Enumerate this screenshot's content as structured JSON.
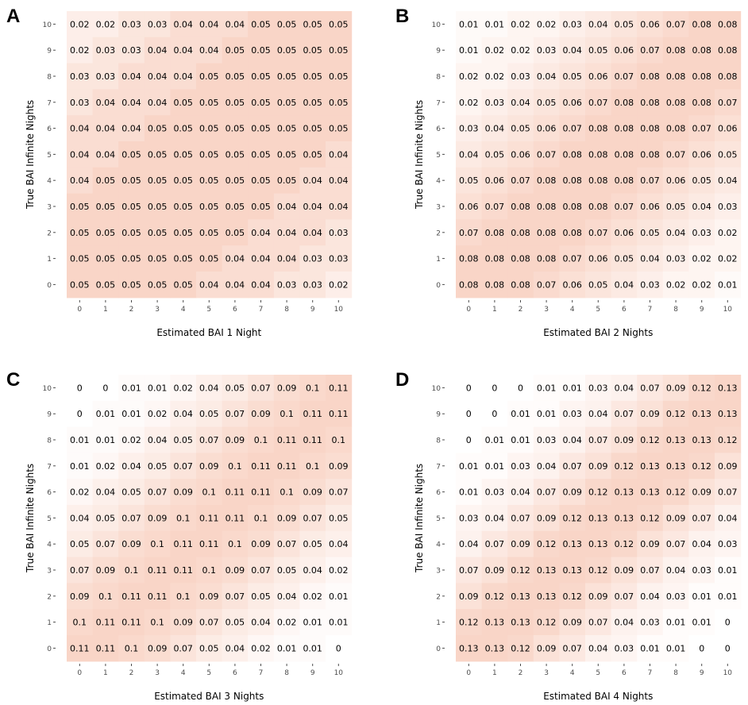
{
  "chart_data": [
    {
      "type": "heatmap",
      "panel_label": "A",
      "xlabel": "Estimated BAI 1 Night",
      "ylabel": "True BAI Infinite Nights",
      "x": [
        0,
        1,
        2,
        3,
        4,
        5,
        6,
        7,
        8,
        9,
        10
      ],
      "y": [
        0,
        1,
        2,
        3,
        4,
        5,
        6,
        7,
        8,
        9,
        10
      ],
      "x_tick_labels": [
        "0",
        "1",
        "2",
        "3",
        "4",
        "5",
        "6",
        "7",
        "8",
        "9",
        "10"
      ],
      "y_tick_labels": [
        "0",
        "1",
        "2",
        "3",
        "4",
        "5",
        "6",
        "7",
        "8",
        "9",
        "10"
      ],
      "z_rows_top_to_bottom": [
        [
          "0.02",
          "0.02",
          "0.03",
          "0.03",
          "0.04",
          "0.04",
          "0.04",
          "0.05",
          "0.05",
          "0.05",
          "0.05"
        ],
        [
          "0.02",
          "0.03",
          "0.03",
          "0.04",
          "0.04",
          "0.04",
          "0.05",
          "0.05",
          "0.05",
          "0.05",
          "0.05"
        ],
        [
          "0.03",
          "0.03",
          "0.04",
          "0.04",
          "0.04",
          "0.05",
          "0.05",
          "0.05",
          "0.05",
          "0.05",
          "0.05"
        ],
        [
          "0.03",
          "0.04",
          "0.04",
          "0.04",
          "0.05",
          "0.05",
          "0.05",
          "0.05",
          "0.05",
          "0.05",
          "0.05"
        ],
        [
          "0.04",
          "0.04",
          "0.04",
          "0.05",
          "0.05",
          "0.05",
          "0.05",
          "0.05",
          "0.05",
          "0.05",
          "0.05"
        ],
        [
          "0.04",
          "0.04",
          "0.05",
          "0.05",
          "0.05",
          "0.05",
          "0.05",
          "0.05",
          "0.05",
          "0.05",
          "0.04"
        ],
        [
          "0.04",
          "0.05",
          "0.05",
          "0.05",
          "0.05",
          "0.05",
          "0.05",
          "0.05",
          "0.05",
          "0.04",
          "0.04"
        ],
        [
          "0.05",
          "0.05",
          "0.05",
          "0.05",
          "0.05",
          "0.05",
          "0.05",
          "0.05",
          "0.04",
          "0.04",
          "0.04"
        ],
        [
          "0.05",
          "0.05",
          "0.05",
          "0.05",
          "0.05",
          "0.05",
          "0.05",
          "0.04",
          "0.04",
          "0.04",
          "0.03"
        ],
        [
          "0.05",
          "0.05",
          "0.05",
          "0.05",
          "0.05",
          "0.05",
          "0.04",
          "0.04",
          "0.04",
          "0.03",
          "0.03"
        ],
        [
          "0.05",
          "0.05",
          "0.05",
          "0.05",
          "0.05",
          "0.04",
          "0.04",
          "0.04",
          "0.03",
          "0.03",
          "0.02"
        ]
      ]
    },
    {
      "type": "heatmap",
      "panel_label": "B",
      "xlabel": "Estimated BAI 2 Nights",
      "ylabel": "True BAI Infinite Nights",
      "x": [
        0,
        1,
        2,
        3,
        4,
        5,
        6,
        7,
        8,
        9,
        10
      ],
      "y": [
        0,
        1,
        2,
        3,
        4,
        5,
        6,
        7,
        8,
        9,
        10
      ],
      "x_tick_labels": [
        "0",
        "1",
        "2",
        "3",
        "4",
        "5",
        "6",
        "7",
        "8",
        "9",
        "10"
      ],
      "y_tick_labels": [
        "0",
        "1",
        "2",
        "3",
        "4",
        "5",
        "6",
        "7",
        "8",
        "9",
        "10"
      ],
      "z_rows_top_to_bottom": [
        [
          "0.01",
          "0.01",
          "0.02",
          "0.02",
          "0.03",
          "0.04",
          "0.05",
          "0.06",
          "0.07",
          "0.08",
          "0.08"
        ],
        [
          "0.01",
          "0.02",
          "0.02",
          "0.03",
          "0.04",
          "0.05",
          "0.06",
          "0.07",
          "0.08",
          "0.08",
          "0.08"
        ],
        [
          "0.02",
          "0.02",
          "0.03",
          "0.04",
          "0.05",
          "0.06",
          "0.07",
          "0.08",
          "0.08",
          "0.08",
          "0.08"
        ],
        [
          "0.02",
          "0.03",
          "0.04",
          "0.05",
          "0.06",
          "0.07",
          "0.08",
          "0.08",
          "0.08",
          "0.08",
          "0.07"
        ],
        [
          "0.03",
          "0.04",
          "0.05",
          "0.06",
          "0.07",
          "0.08",
          "0.08",
          "0.08",
          "0.08",
          "0.07",
          "0.06"
        ],
        [
          "0.04",
          "0.05",
          "0.06",
          "0.07",
          "0.08",
          "0.08",
          "0.08",
          "0.08",
          "0.07",
          "0.06",
          "0.05"
        ],
        [
          "0.05",
          "0.06",
          "0.07",
          "0.08",
          "0.08",
          "0.08",
          "0.08",
          "0.07",
          "0.06",
          "0.05",
          "0.04"
        ],
        [
          "0.06",
          "0.07",
          "0.08",
          "0.08",
          "0.08",
          "0.08",
          "0.07",
          "0.06",
          "0.05",
          "0.04",
          "0.03"
        ],
        [
          "0.07",
          "0.08",
          "0.08",
          "0.08",
          "0.08",
          "0.07",
          "0.06",
          "0.05",
          "0.04",
          "0.03",
          "0.02"
        ],
        [
          "0.08",
          "0.08",
          "0.08",
          "0.08",
          "0.07",
          "0.06",
          "0.05",
          "0.04",
          "0.03",
          "0.02",
          "0.02"
        ],
        [
          "0.08",
          "0.08",
          "0.08",
          "0.07",
          "0.06",
          "0.05",
          "0.04",
          "0.03",
          "0.02",
          "0.02",
          "0.01"
        ]
      ]
    },
    {
      "type": "heatmap",
      "panel_label": "C",
      "xlabel": "Estimated BAI 3 Nights",
      "ylabel": "True BAI Infinite Nights",
      "x": [
        0,
        1,
        2,
        3,
        4,
        5,
        6,
        7,
        8,
        9,
        10
      ],
      "y": [
        0,
        1,
        2,
        3,
        4,
        5,
        6,
        7,
        8,
        9,
        10
      ],
      "x_tick_labels": [
        "0",
        "1",
        "2",
        "3",
        "4",
        "5",
        "6",
        "7",
        "8",
        "9",
        "10"
      ],
      "y_tick_labels": [
        "0",
        "1",
        "2",
        "3",
        "4",
        "5",
        "6",
        "7",
        "8",
        "9",
        "10"
      ],
      "z_rows_top_to_bottom": [
        [
          "0",
          "0",
          "0.01",
          "0.01",
          "0.02",
          "0.04",
          "0.05",
          "0.07",
          "0.09",
          "0.1",
          "0.11"
        ],
        [
          "0",
          "0.01",
          "0.01",
          "0.02",
          "0.04",
          "0.05",
          "0.07",
          "0.09",
          "0.1",
          "0.11",
          "0.11"
        ],
        [
          "0.01",
          "0.01",
          "0.02",
          "0.04",
          "0.05",
          "0.07",
          "0.09",
          "0.1",
          "0.11",
          "0.11",
          "0.1"
        ],
        [
          "0.01",
          "0.02",
          "0.04",
          "0.05",
          "0.07",
          "0.09",
          "0.1",
          "0.11",
          "0.11",
          "0.1",
          "0.09"
        ],
        [
          "0.02",
          "0.04",
          "0.05",
          "0.07",
          "0.09",
          "0.1",
          "0.11",
          "0.11",
          "0.1",
          "0.09",
          "0.07"
        ],
        [
          "0.04",
          "0.05",
          "0.07",
          "0.09",
          "0.1",
          "0.11",
          "0.11",
          "0.1",
          "0.09",
          "0.07",
          "0.05"
        ],
        [
          "0.05",
          "0.07",
          "0.09",
          "0.1",
          "0.11",
          "0.11",
          "0.1",
          "0.09",
          "0.07",
          "0.05",
          "0.04"
        ],
        [
          "0.07",
          "0.09",
          "0.1",
          "0.11",
          "0.11",
          "0.1",
          "0.09",
          "0.07",
          "0.05",
          "0.04",
          "0.02"
        ],
        [
          "0.09",
          "0.1",
          "0.11",
          "0.11",
          "0.1",
          "0.09",
          "0.07",
          "0.05",
          "0.04",
          "0.02",
          "0.01"
        ],
        [
          "0.1",
          "0.11",
          "0.11",
          "0.1",
          "0.09",
          "0.07",
          "0.05",
          "0.04",
          "0.02",
          "0.01",
          "0.01"
        ],
        [
          "0.11",
          "0.11",
          "0.1",
          "0.09",
          "0.07",
          "0.05",
          "0.04",
          "0.02",
          "0.01",
          "0.01",
          "0"
        ]
      ]
    },
    {
      "type": "heatmap",
      "panel_label": "D",
      "xlabel": "Estimated BAI 4 Nights",
      "ylabel": "True BAI Infinite Nights",
      "x": [
        0,
        1,
        2,
        3,
        4,
        5,
        6,
        7,
        8,
        9,
        10
      ],
      "y": [
        0,
        1,
        2,
        3,
        4,
        5,
        6,
        7,
        8,
        9,
        10
      ],
      "x_tick_labels": [
        "0",
        "1",
        "2",
        "3",
        "4",
        "5",
        "6",
        "7",
        "8",
        "9",
        "10"
      ],
      "y_tick_labels": [
        "0",
        "1",
        "2",
        "3",
        "4",
        "5",
        "6",
        "7",
        "8",
        "9",
        "10"
      ],
      "z_rows_top_to_bottom": [
        [
          "0",
          "0",
          "0",
          "0.01",
          "0.01",
          "0.03",
          "0.04",
          "0.07",
          "0.09",
          "0.12",
          "0.13"
        ],
        [
          "0",
          "0",
          "0.01",
          "0.01",
          "0.03",
          "0.04",
          "0.07",
          "0.09",
          "0.12",
          "0.13",
          "0.13"
        ],
        [
          "0",
          "0.01",
          "0.01",
          "0.03",
          "0.04",
          "0.07",
          "0.09",
          "0.12",
          "0.13",
          "0.13",
          "0.12"
        ],
        [
          "0.01",
          "0.01",
          "0.03",
          "0.04",
          "0.07",
          "0.09",
          "0.12",
          "0.13",
          "0.13",
          "0.12",
          "0.09"
        ],
        [
          "0.01",
          "0.03",
          "0.04",
          "0.07",
          "0.09",
          "0.12",
          "0.13",
          "0.13",
          "0.12",
          "0.09",
          "0.07"
        ],
        [
          "0.03",
          "0.04",
          "0.07",
          "0.09",
          "0.12",
          "0.13",
          "0.13",
          "0.12",
          "0.09",
          "0.07",
          "0.04"
        ],
        [
          "0.04",
          "0.07",
          "0.09",
          "0.12",
          "0.13",
          "0.13",
          "0.12",
          "0.09",
          "0.07",
          "0.04",
          "0.03"
        ],
        [
          "0.07",
          "0.09",
          "0.12",
          "0.13",
          "0.13",
          "0.12",
          "0.09",
          "0.07",
          "0.04",
          "0.03",
          "0.01"
        ],
        [
          "0.09",
          "0.12",
          "0.13",
          "0.13",
          "0.12",
          "0.09",
          "0.07",
          "0.04",
          "0.03",
          "0.01",
          "0.01"
        ],
        [
          "0.12",
          "0.13",
          "0.13",
          "0.12",
          "0.09",
          "0.07",
          "0.04",
          "0.03",
          "0.01",
          "0.01",
          "0"
        ],
        [
          "0.13",
          "0.13",
          "0.12",
          "0.09",
          "0.07",
          "0.04",
          "0.03",
          "0.01",
          "0.01",
          "0",
          "0"
        ]
      ]
    }
  ],
  "colors": {
    "low": "#ffffff",
    "high": "#f7c7b4",
    "text": "#000000",
    "tick": "#4d4d4d"
  }
}
